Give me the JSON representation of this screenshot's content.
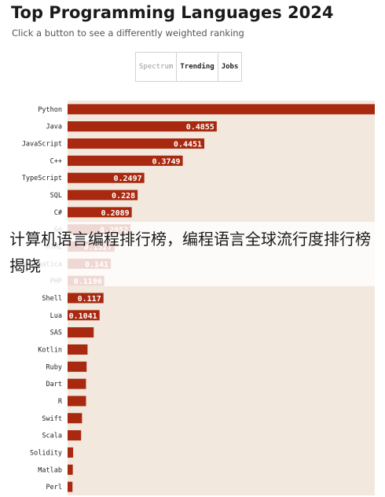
{
  "header": {
    "title": "Top Programming Languages 2024",
    "subtitle": "Click a button to see a differently weighted ranking"
  },
  "tabs": [
    {
      "label": "Spectrum",
      "state": "inactive"
    },
    {
      "label": "Trending",
      "state": "active"
    },
    {
      "label": "Jobs",
      "state": "active"
    }
  ],
  "overlay": {
    "caption": "计算机语言编程排行榜，编程语言全球流行度排行榜揭晓"
  },
  "colors": {
    "bar": "#a8290f",
    "chart_background": "#f2e8de",
    "value_label": "#ffffff"
  },
  "chart_data": {
    "type": "bar",
    "orientation": "horizontal",
    "title": "Top Programming Languages 2024",
    "subtitle": "Click a button to see a differently weighted ranking",
    "categories": [
      "Python",
      "Java",
      "JavaScript",
      "C++",
      "TypeScript",
      "SQL",
      "C#",
      "Go",
      "HTML",
      "Mathematica",
      "PHP",
      "Shell",
      "Lua",
      "SAS",
      "Kotlin",
      "Ruby",
      "Dart",
      "R",
      "Swift",
      "Scala",
      "Solidity",
      "Matlab",
      "Perl"
    ],
    "values": [
      1.0,
      0.4855,
      0.4451,
      0.3749,
      0.2497,
      0.228,
      0.2089,
      0.2052,
      0.1527,
      0.141,
      0.1196,
      0.117,
      0.1041,
      0.085,
      0.065,
      0.062,
      0.06,
      0.06,
      0.047,
      0.044,
      0.018,
      0.017,
      0.016
    ],
    "labels": [
      "",
      "0.4855",
      "0.4451",
      "0.3749",
      "0.2497",
      "0.228",
      "0.2089",
      "0.2052",
      "0.1527",
      "0.141",
      "0.1196",
      "0.117",
      "0.1041",
      "",
      "",
      "",
      "",
      "",
      "",
      "",
      "",
      "",
      ""
    ],
    "xlim": [
      0,
      1.0
    ],
    "grid": false,
    "legend": "none"
  }
}
